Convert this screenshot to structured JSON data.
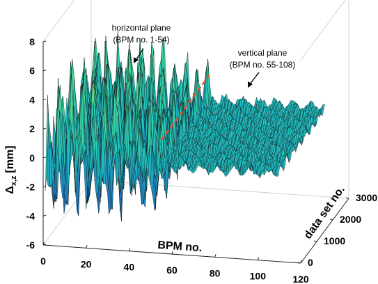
{
  "chart_data": {
    "type": "surface",
    "title": "",
    "xlabel": "BPM no.",
    "ylabel": "data set no.",
    "zlabel_main": "Δ",
    "zlabel_sub": "x,z",
    "zlabel_unit": "[mm]",
    "x_ticks": [
      "0",
      "20",
      "40",
      "60",
      "80",
      "100",
      "120"
    ],
    "y_ticks": [
      "0",
      "1000",
      "2000",
      "3000"
    ],
    "z_ticks": [
      "-6",
      "-4",
      "-2",
      "0",
      "2",
      "4",
      "6",
      "8"
    ],
    "xlim": [
      0,
      120
    ],
    "ylim": [
      0,
      3000
    ],
    "zlim": [
      -6,
      8
    ],
    "bpm_count": 108,
    "divider_bpm": 54,
    "annotations": [
      {
        "line1": "horizontal plane",
        "line2": "(BPM no. 1-54)"
      },
      {
        "line1": "vertical plane",
        "line2": "(BPM no. 55-108)"
      }
    ],
    "series": [
      {
        "name": "horizontal plane",
        "bpm_range": [
          1,
          54
        ],
        "z_range": [
          -4.5,
          7.5
        ]
      },
      {
        "name": "vertical plane",
        "bpm_range": [
          55,
          108
        ],
        "z_range": [
          -0.5,
          1.5
        ]
      }
    ],
    "colormap": [
      "#1b2a6b",
      "#1f7fbf",
      "#1fbfbf",
      "#3fd6a0",
      "#8fd66a",
      "#d6d640"
    ],
    "grid": false
  }
}
